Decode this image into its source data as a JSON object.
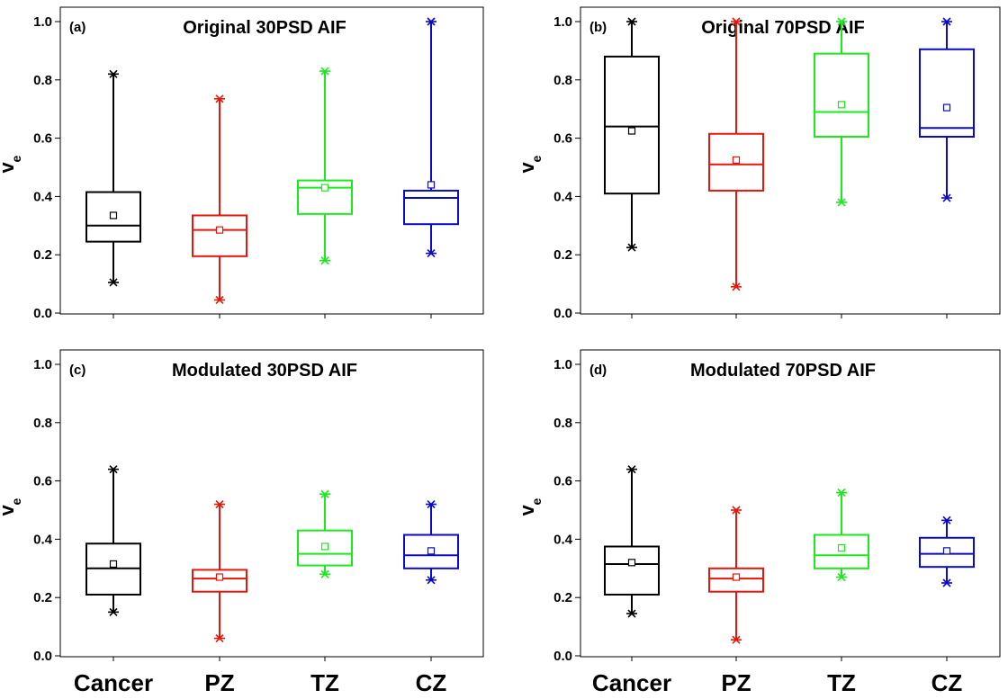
{
  "chart_data": [
    {
      "type": "box",
      "panel_label": "(a)",
      "title": "Original 30PSD AIF",
      "ylabel": "v",
      "ylabel_sub": "e",
      "ylim": [
        0,
        1
      ],
      "yticks": [
        "0.0",
        "0.2",
        "0.4",
        "0.6",
        "0.8",
        "1.0"
      ],
      "categories": [
        "Cancer",
        "PZ",
        "TZ",
        "CZ"
      ],
      "colors": [
        "#000000",
        "#e8160c",
        "#1de81d",
        "#0a0ac8"
      ],
      "boxes": [
        {
          "whisker_low": 0.105,
          "q1": 0.245,
          "median": 0.3,
          "q3": 0.415,
          "whisker_high": 0.82,
          "mean": 0.335
        },
        {
          "whisker_low": 0.045,
          "q1": 0.195,
          "median": 0.285,
          "q3": 0.335,
          "whisker_high": 0.735,
          "mean": 0.285
        },
        {
          "whisker_low": 0.18,
          "q1": 0.34,
          "median": 0.43,
          "q3": 0.455,
          "whisker_high": 0.83,
          "mean": 0.43
        },
        {
          "whisker_low": 0.205,
          "q1": 0.305,
          "median": 0.395,
          "q3": 0.42,
          "whisker_high": 1.0,
          "mean": 0.44
        }
      ]
    },
    {
      "type": "box",
      "panel_label": "(b)",
      "title": "Original 70PSD AIF",
      "ylabel": "v",
      "ylabel_sub": "e",
      "ylim": [
        0,
        1
      ],
      "yticks": [
        "0.0",
        "0.2",
        "0.4",
        "0.6",
        "0.8",
        "1.0"
      ],
      "categories": [
        "Cancer",
        "PZ",
        "TZ",
        "CZ"
      ],
      "colors": [
        "#000000",
        "#e8160c",
        "#1de81d",
        "#0a0ac8"
      ],
      "boxes": [
        {
          "whisker_low": 0.225,
          "q1": 0.41,
          "median": 0.64,
          "q3": 0.88,
          "whisker_high": 1.0,
          "mean": 0.625
        },
        {
          "whisker_low": 0.09,
          "q1": 0.42,
          "median": 0.51,
          "q3": 0.615,
          "whisker_high": 1.0,
          "mean": 0.525
        },
        {
          "whisker_low": 0.38,
          "q1": 0.605,
          "median": 0.69,
          "q3": 0.89,
          "whisker_high": 1.0,
          "mean": 0.715
        },
        {
          "whisker_low": 0.395,
          "q1": 0.605,
          "median": 0.635,
          "q3": 0.905,
          "whisker_high": 1.0,
          "mean": 0.705
        }
      ]
    },
    {
      "type": "box",
      "panel_label": "(c)",
      "title": "Modulated 30PSD AIF",
      "ylabel": "v",
      "ylabel_sub": "e",
      "ylim": [
        0,
        1
      ],
      "yticks": [
        "0.0",
        "0.2",
        "0.4",
        "0.6",
        "0.8",
        "1.0"
      ],
      "categories": [
        "Cancer",
        "PZ",
        "TZ",
        "CZ"
      ],
      "colors": [
        "#000000",
        "#e8160c",
        "#1de81d",
        "#0a0ac8"
      ],
      "boxes": [
        {
          "whisker_low": 0.15,
          "q1": 0.21,
          "median": 0.3,
          "q3": 0.385,
          "whisker_high": 0.64,
          "mean": 0.315
        },
        {
          "whisker_low": 0.06,
          "q1": 0.22,
          "median": 0.265,
          "q3": 0.295,
          "whisker_high": 0.52,
          "mean": 0.27
        },
        {
          "whisker_low": 0.28,
          "q1": 0.31,
          "median": 0.35,
          "q3": 0.43,
          "whisker_high": 0.555,
          "mean": 0.375
        },
        {
          "whisker_low": 0.26,
          "q1": 0.3,
          "median": 0.345,
          "q3": 0.415,
          "whisker_high": 0.52,
          "mean": 0.36
        }
      ]
    },
    {
      "type": "box",
      "panel_label": "(d)",
      "title": "Modulated 70PSD AIF",
      "ylabel": "v",
      "ylabel_sub": "e",
      "ylim": [
        0,
        1
      ],
      "yticks": [
        "0.0",
        "0.2",
        "0.4",
        "0.6",
        "0.8",
        "1.0"
      ],
      "categories": [
        "Cancer",
        "PZ",
        "TZ",
        "CZ"
      ],
      "colors": [
        "#000000",
        "#e8160c",
        "#1de81d",
        "#0a0ac8"
      ],
      "boxes": [
        {
          "whisker_low": 0.145,
          "q1": 0.21,
          "median": 0.315,
          "q3": 0.375,
          "whisker_high": 0.64,
          "mean": 0.32
        },
        {
          "whisker_low": 0.055,
          "q1": 0.22,
          "median": 0.265,
          "q3": 0.3,
          "whisker_high": 0.5,
          "mean": 0.27
        },
        {
          "whisker_low": 0.27,
          "q1": 0.3,
          "median": 0.345,
          "q3": 0.415,
          "whisker_high": 0.56,
          "mean": 0.37
        },
        {
          "whisker_low": 0.25,
          "q1": 0.305,
          "median": 0.35,
          "q3": 0.405,
          "whisker_high": 0.465,
          "mean": 0.36
        }
      ]
    }
  ]
}
